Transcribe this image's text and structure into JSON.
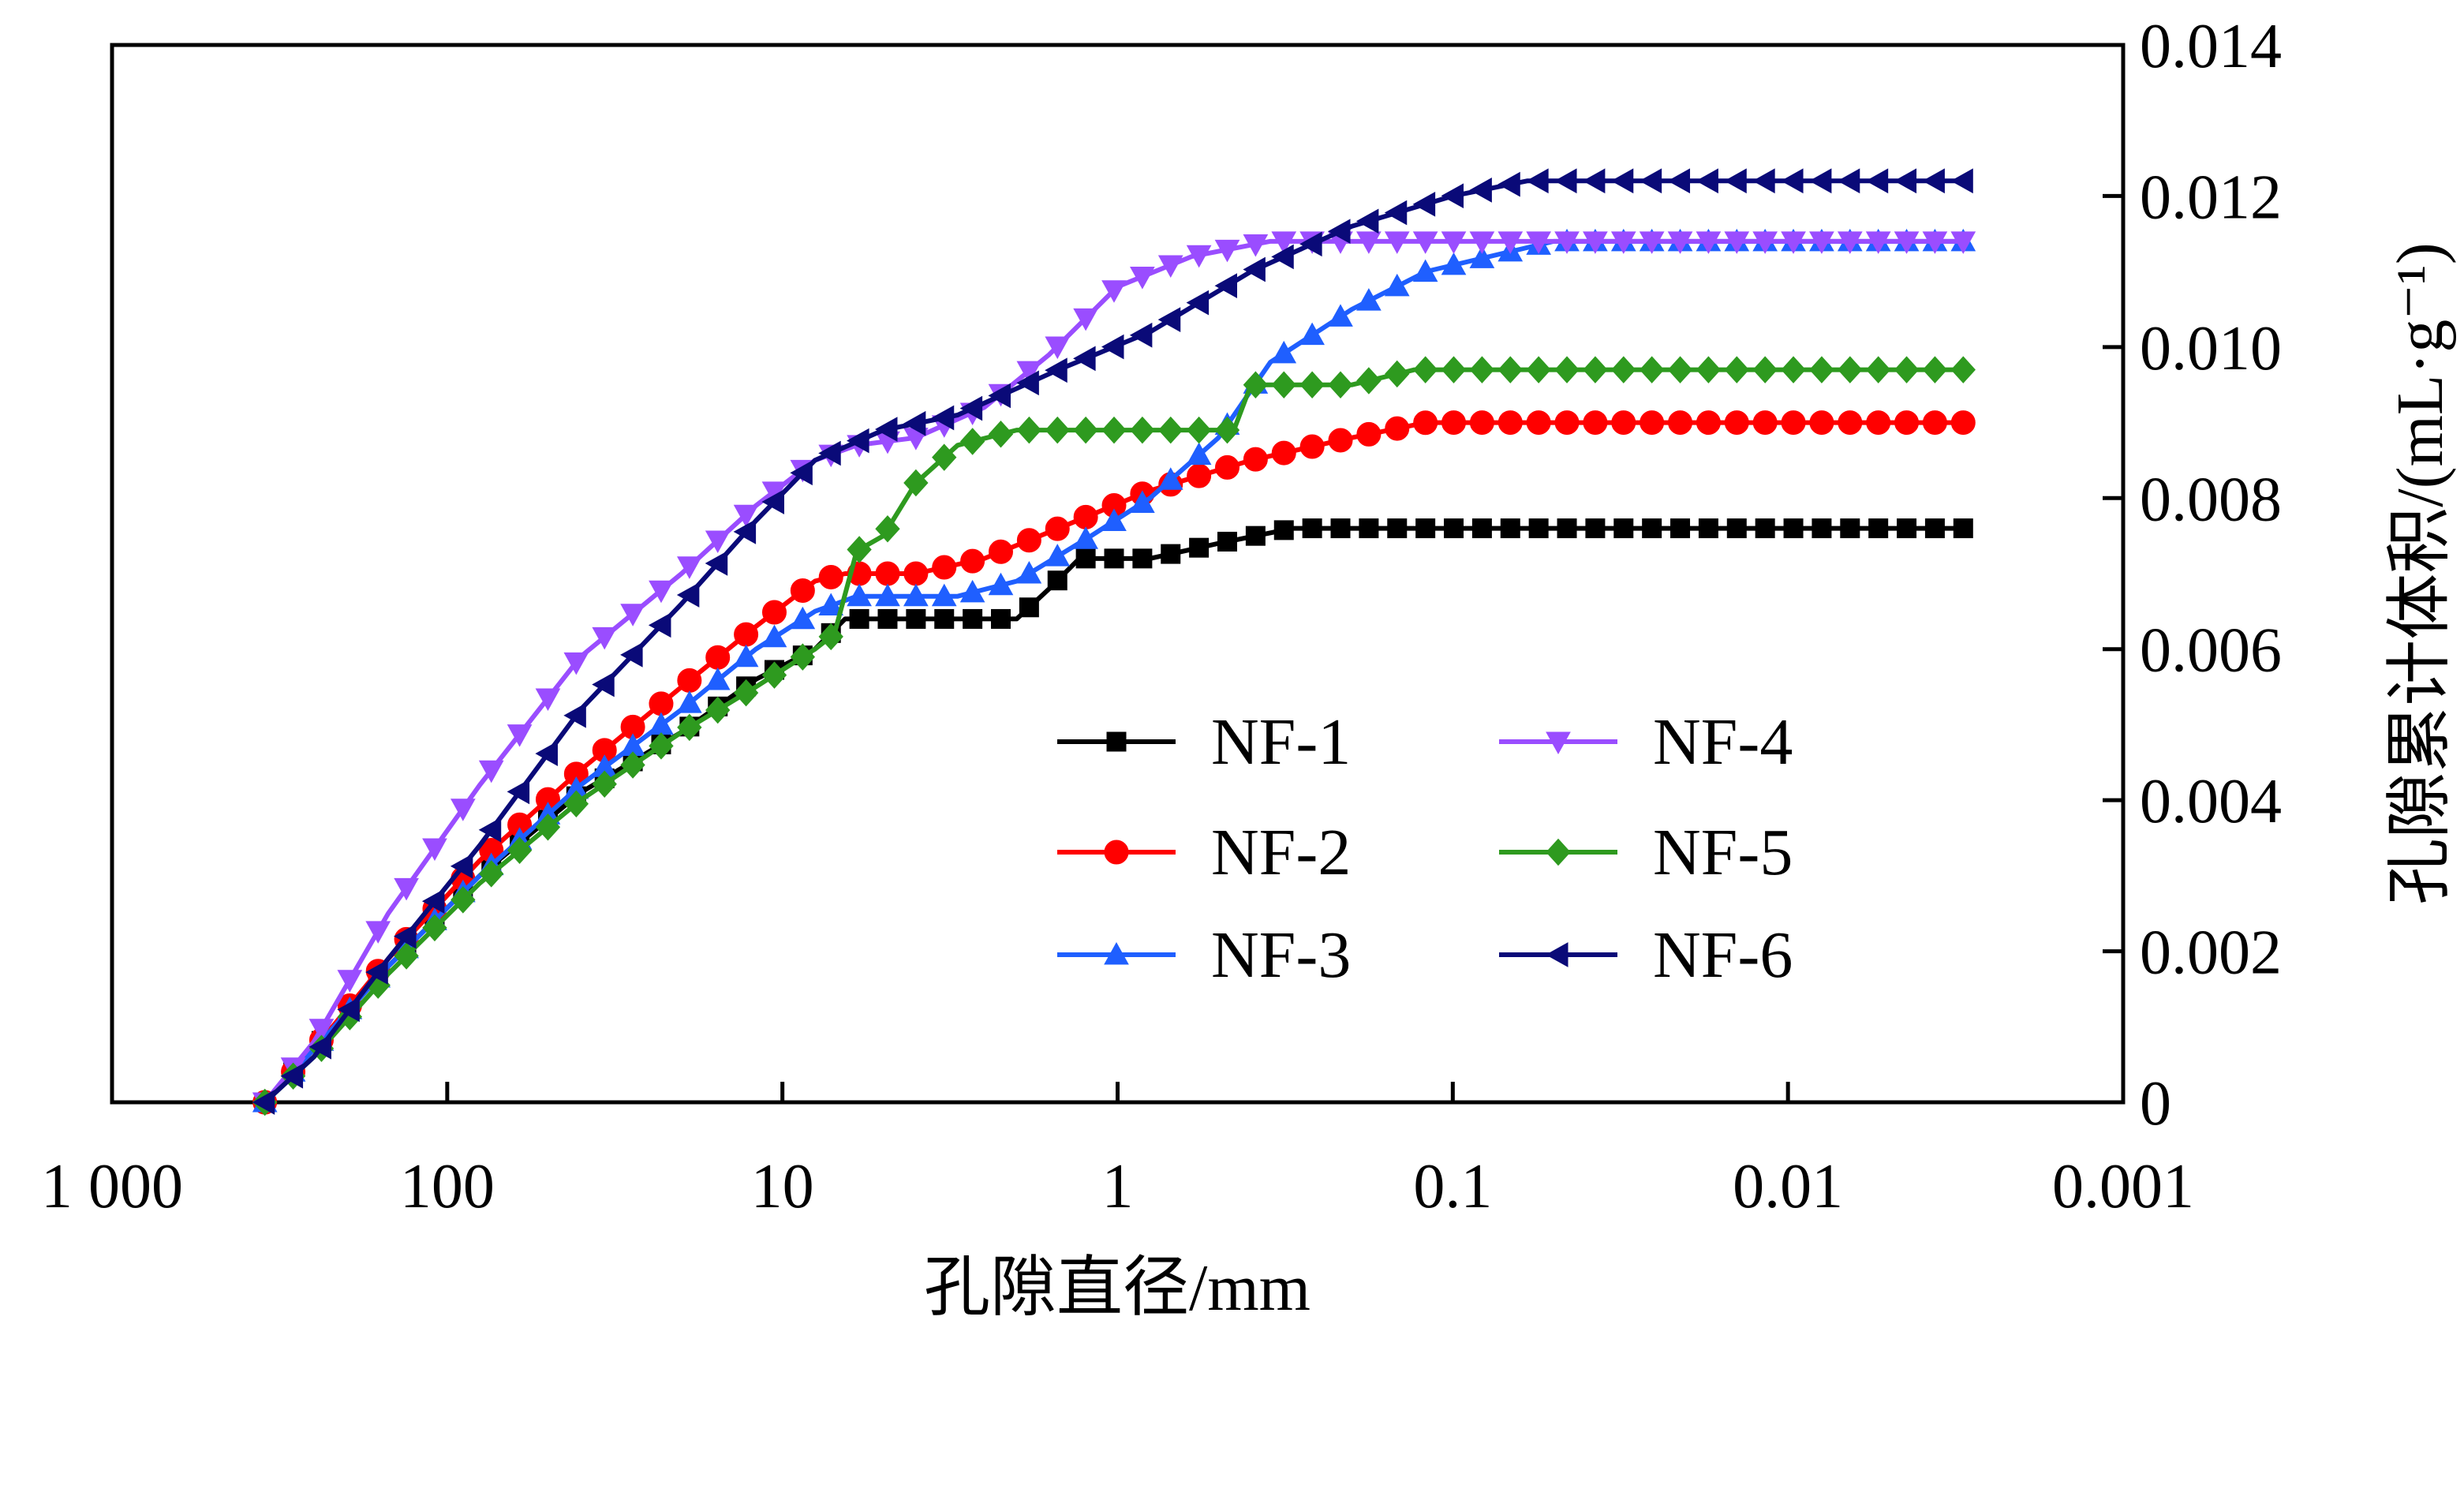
{
  "chart_data": {
    "type": "line",
    "title": "",
    "xlabel": "孔隙直径/mm",
    "ylabel": "孔隙累计体积/(mL·g⁻¹)",
    "x_scale": "log",
    "x_reversed": true,
    "xlim": [
      1000,
      0.001
    ],
    "ylim": [
      0,
      0.014
    ],
    "x_tick_values": [
      1000,
      100,
      10,
      1,
      0.1,
      0.01,
      0.001
    ],
    "x_tick_labels": [
      "1 000",
      "100",
      "10",
      "1",
      "0.1",
      "0.01",
      "0.001"
    ],
    "y_tick_values": [
      0,
      0.002,
      0.004,
      0.006,
      0.008,
      0.01,
      0.012,
      0.014
    ],
    "y_tick_labels": [
      "0",
      "0.002",
      "0.004",
      "0.006",
      "0.008",
      "0.010",
      "0.012",
      "0.014"
    ],
    "y_axis_side": "right",
    "grid": false,
    "legend_position": "center-right, 2 columns",
    "series": [
      {
        "name": "NF-1",
        "color": "#000000",
        "marker": "square",
        "points": [
          [
            350,
            0
          ],
          [
            250,
            0.0007
          ],
          [
            150,
            0.0018
          ],
          [
            80,
            0.003
          ],
          [
            40,
            0.0041
          ],
          [
            20,
            0.0049
          ],
          [
            12,
            0.0056
          ],
          [
            8,
            0.006
          ],
          [
            6.5,
            0.0064
          ],
          [
            5,
            0.0064
          ],
          [
            3,
            0.0064
          ],
          [
            2,
            0.0064
          ],
          [
            1.6,
            0.0068
          ],
          [
            1.3,
            0.0072
          ],
          [
            0.8,
            0.0072
          ],
          [
            0.5,
            0.0074
          ],
          [
            0.3,
            0.0076
          ],
          [
            0.1,
            0.0076
          ],
          [
            0.01,
            0.0076
          ],
          [
            0.003,
            0.0076
          ]
        ]
      },
      {
        "name": "NF-2",
        "color": "#ff0000",
        "marker": "circle",
        "points": [
          [
            350,
            0
          ],
          [
            250,
            0.0007
          ],
          [
            150,
            0.0019
          ],
          [
            80,
            0.0032
          ],
          [
            40,
            0.0044
          ],
          [
            20,
            0.0055
          ],
          [
            12,
            0.0063
          ],
          [
            8,
            0.0069
          ],
          [
            6.5,
            0.007
          ],
          [
            4,
            0.007
          ],
          [
            2.5,
            0.0072
          ],
          [
            1.5,
            0.0076
          ],
          [
            0.8,
            0.0081
          ],
          [
            0.4,
            0.0085
          ],
          [
            0.2,
            0.0088
          ],
          [
            0.12,
            0.009
          ],
          [
            0.05,
            0.009
          ],
          [
            0.01,
            0.009
          ],
          [
            0.003,
            0.009
          ]
        ]
      },
      {
        "name": "NF-3",
        "color": "#1f5fff",
        "marker": "triangle-up",
        "points": [
          [
            350,
            0
          ],
          [
            250,
            0.0007
          ],
          [
            150,
            0.0018
          ],
          [
            80,
            0.003
          ],
          [
            40,
            0.0042
          ],
          [
            20,
            0.0052
          ],
          [
            12,
            0.006
          ],
          [
            8,
            0.0065
          ],
          [
            6,
            0.0067
          ],
          [
            3,
            0.0067
          ],
          [
            2,
            0.0069
          ],
          [
            1.2,
            0.0075
          ],
          [
            0.8,
            0.008
          ],
          [
            0.5,
            0.0088
          ],
          [
            0.35,
            0.0098
          ],
          [
            0.2,
            0.0105
          ],
          [
            0.12,
            0.011
          ],
          [
            0.05,
            0.0114
          ],
          [
            0.01,
            0.0114
          ],
          [
            0.003,
            0.0114
          ]
        ]
      },
      {
        "name": "NF-4",
        "color": "#9a4dff",
        "marker": "triangle-down",
        "points": [
          [
            350,
            0
          ],
          [
            250,
            0.0008
          ],
          [
            150,
            0.0025
          ],
          [
            80,
            0.0042
          ],
          [
            40,
            0.0059
          ],
          [
            20,
            0.007
          ],
          [
            12,
            0.0079
          ],
          [
            8,
            0.0085
          ],
          [
            6,
            0.0087
          ],
          [
            4,
            0.0088
          ],
          [
            2.5,
            0.0092
          ],
          [
            1.6,
            0.0099
          ],
          [
            1.0,
            0.0108
          ],
          [
            0.6,
            0.0112
          ],
          [
            0.35,
            0.0114
          ],
          [
            0.1,
            0.0114
          ],
          [
            0.01,
            0.0114
          ],
          [
            0.003,
            0.0114
          ]
        ]
      },
      {
        "name": "NF-5",
        "color": "#2e9a1f",
        "marker": "diamond",
        "points": [
          [
            350,
            0
          ],
          [
            250,
            0.0006
          ],
          [
            150,
            0.0017
          ],
          [
            80,
            0.0029
          ],
          [
            40,
            0.004
          ],
          [
            20,
            0.0049
          ],
          [
            12,
            0.0055
          ],
          [
            8,
            0.006
          ],
          [
            7,
            0.0062
          ],
          [
            6,
            0.0073
          ],
          [
            5,
            0.0075
          ],
          [
            4,
            0.0082
          ],
          [
            3,
            0.0087
          ],
          [
            2,
            0.0089
          ],
          [
            1.0,
            0.0089
          ],
          [
            0.45,
            0.0089
          ],
          [
            0.4,
            0.0095
          ],
          [
            0.2,
            0.0095
          ],
          [
            0.13,
            0.0097
          ],
          [
            0.05,
            0.0097
          ],
          [
            0.01,
            0.0097
          ],
          [
            0.003,
            0.0097
          ]
        ]
      },
      {
        "name": "NF-6",
        "color": "#0a0a78",
        "marker": "triangle-left",
        "points": [
          [
            350,
            0
          ],
          [
            250,
            0.0006
          ],
          [
            150,
            0.0019
          ],
          [
            80,
            0.0034
          ],
          [
            40,
            0.0052
          ],
          [
            20,
            0.0066
          ],
          [
            12,
            0.0077
          ],
          [
            8,
            0.0085
          ],
          [
            5,
            0.0089
          ],
          [
            3,
            0.0091
          ],
          [
            1.5,
            0.0097
          ],
          [
            0.8,
            0.0102
          ],
          [
            0.4,
            0.011
          ],
          [
            0.2,
            0.0116
          ],
          [
            0.1,
            0.012
          ],
          [
            0.06,
            0.0122
          ],
          [
            0.02,
            0.0122
          ],
          [
            0.005,
            0.0122
          ],
          [
            0.003,
            0.0122
          ]
        ]
      }
    ]
  }
}
